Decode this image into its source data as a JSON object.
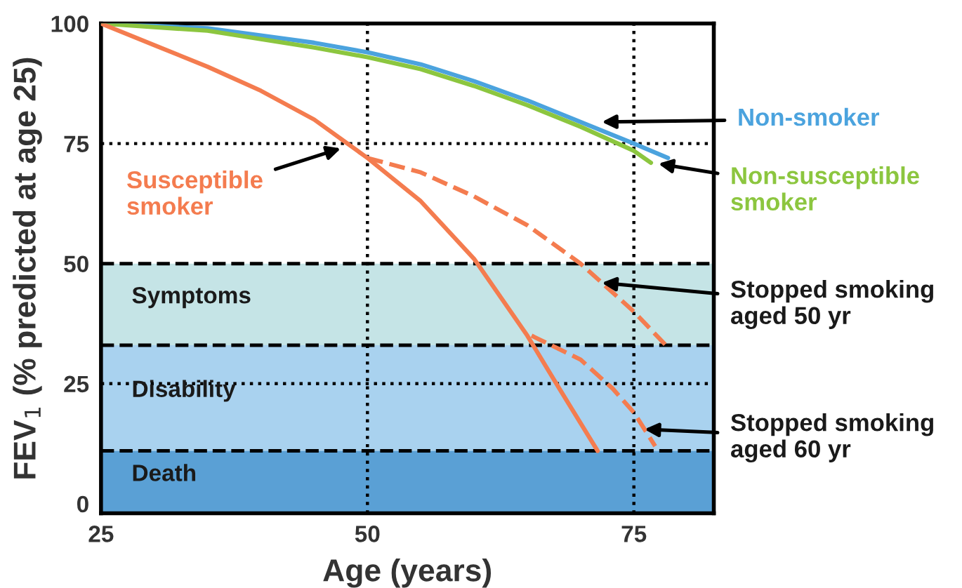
{
  "chart_data": {
    "type": "line",
    "xlabel": "Age (years)",
    "ylabel": "FEV$_{1}$ (% predicted at age 25)",
    "xlim": [
      25,
      82.5
    ],
    "xticks": [
      25,
      50,
      75
    ],
    "ylim": [
      -2,
      100
    ],
    "yticks": [
      0,
      25,
      50,
      75,
      100
    ],
    "grid": false,
    "marker": "none",
    "series": [
      {
        "color": "#4ba3de",
        "line_style": "solid",
        "x": [
          25,
          35,
          45,
          50,
          55,
          60,
          65,
          70,
          75,
          78.2
        ],
        "values": [
          100,
          99,
          96,
          94,
          91.5,
          88,
          84,
          79.5,
          75,
          72
        ]
      },
      {
        "color": "#8cc63f",
        "line_style": "solid",
        "x": [
          25,
          35,
          45,
          50,
          55,
          60,
          65,
          70,
          75,
          76.6
        ],
        "values": [
          100,
          98.5,
          95,
          93,
          90.5,
          87,
          83,
          78.5,
          73.5,
          71
        ]
      },
      {
        "color": "#f47c4f",
        "line_style": "solid",
        "x": [
          25,
          30,
          35,
          40,
          45,
          47.5,
          50,
          55,
          60,
          65,
          68,
          71.6
        ],
        "values": [
          100,
          95.5,
          91,
          86,
          80,
          76,
          72,
          63,
          51,
          35,
          24,
          11
        ]
      },
      {
        "color": "#f47c4f",
        "line_style": "dashed",
        "x": [
          50,
          55,
          60,
          65,
          70,
          75,
          78
        ],
        "values": [
          72,
          69,
          64,
          58,
          50,
          40,
          33
        ]
      },
      {
        "color": "#f47c4f",
        "line_style": "dashed",
        "x": [
          65.4,
          70,
          73,
          75,
          77
        ],
        "values": [
          35,
          30,
          24,
          19,
          12
        ]
      }
    ],
    "bands": [
      {
        "axis": "y",
        "from": 33,
        "to": 50,
        "label": "Symptoms",
        "color": "#c5e4e6"
      },
      {
        "axis": "y",
        "from": 11,
        "to": 33,
        "label": "Disability",
        "color": "#a9d2ef"
      },
      {
        "axis": "y",
        "from": -2,
        "to": 11,
        "label": "Death",
        "color": "#5aa0d5"
      }
    ],
    "ref_lines": [
      {
        "axis": "y",
        "value": 50,
        "color": "#000000",
        "line_style": "dashed"
      },
      {
        "axis": "y",
        "value": 33,
        "color": "#000000",
        "line_style": "dashed"
      },
      {
        "axis": "y",
        "value": 11,
        "color": "#000000",
        "line_style": "dashed"
      },
      {
        "axis": "x",
        "value": 50,
        "color": "#000000",
        "line_style": "dotted"
      },
      {
        "axis": "x",
        "value": 75,
        "color": "#000000",
        "line_style": "dotted"
      },
      {
        "axis": "y",
        "value": 75,
        "color": "#000000",
        "line_style": "dotted"
      },
      {
        "axis": "y",
        "value": 25,
        "color": "#000000",
        "line_style": "dotted"
      }
    ],
    "annotations": [
      {
        "text": "Non-smoker",
        "x": 72,
        "y": 79.5
      },
      {
        "text": "Non-susceptible\nsmoker",
        "x": 77.3,
        "y": 70.8
      },
      {
        "text": "Susceptible\nsmoker",
        "x": 47.5,
        "y": 74
      },
      {
        "text": "Stopped smoking\naged 50 yr",
        "x": 72,
        "y": 46
      },
      {
        "text": "Stopped smoking\naged 60 yr",
        "x": 76,
        "y": 15.5
      }
    ]
  }
}
